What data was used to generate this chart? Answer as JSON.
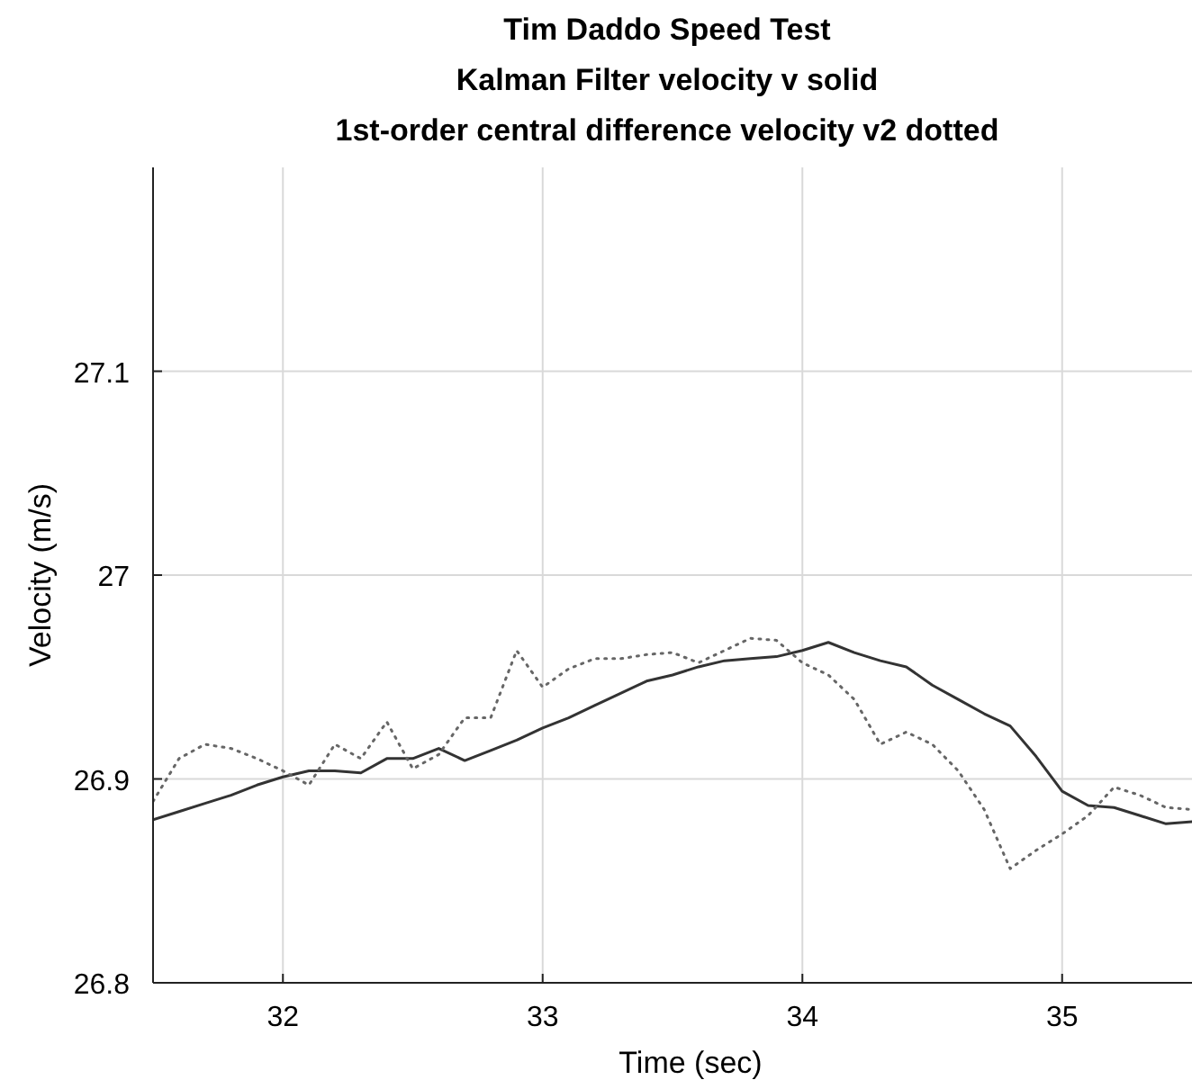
{
  "chart_data": {
    "type": "line",
    "title": "Tim Daddo Speed Test",
    "subtitle": "Kalman Filter velocity v solid\n1st-order central difference velocity v2 dotted",
    "xlabel": "Time (sec)",
    "ylabel": "Velocity (m/s)",
    "x": [
      31.5,
      31.6,
      31.7,
      31.8,
      31.9,
      32.0,
      32.1,
      32.2,
      32.3,
      32.4,
      32.5,
      32.6,
      32.7,
      32.8,
      32.9,
      33.0,
      33.1,
      33.2,
      33.3,
      33.4,
      33.5,
      33.6,
      33.7,
      33.8,
      33.9,
      34.0,
      34.1,
      34.2,
      34.3,
      34.4,
      34.5,
      34.6,
      34.7,
      34.8,
      34.9,
      35.0,
      35.1,
      35.2,
      35.3,
      35.4,
      35.5
    ],
    "series": [
      {
        "color": "#333333",
        "line_style": "solid",
        "values": [
          26.88,
          26.884,
          26.888,
          26.892,
          26.897,
          26.901,
          26.904,
          26.904,
          26.903,
          26.91,
          26.91,
          26.915,
          26.909,
          26.914,
          26.919,
          26.925,
          26.93,
          26.936,
          26.942,
          26.948,
          26.951,
          26.955,
          26.958,
          26.959,
          26.96,
          26.963,
          26.967,
          26.962,
          26.958,
          26.955,
          26.946,
          26.939,
          26.932,
          26.926,
          26.911,
          26.894,
          26.887,
          26.886,
          26.882,
          26.878,
          26.879
        ]
      },
      {
        "color": "#666666",
        "line_style": "dotted",
        "values": [
          26.889,
          26.91,
          26.917,
          26.915,
          26.91,
          26.904,
          26.897,
          26.917,
          26.91,
          26.928,
          26.905,
          26.912,
          26.93,
          26.93,
          26.963,
          26.945,
          26.954,
          26.959,
          26.959,
          26.961,
          26.962,
          26.957,
          26.963,
          26.969,
          26.968,
          26.957,
          26.951,
          26.939,
          26.917,
          26.923,
          26.917,
          26.904,
          26.885,
          26.856,
          26.865,
          26.873,
          26.882,
          26.896,
          26.892,
          26.886,
          26.885
        ]
      }
    ],
    "xlim": [
      31.5,
      35.5
    ],
    "xticks": [
      32,
      33,
      34,
      35
    ],
    "ylim": [
      26.8,
      27.2
    ],
    "yticks": [
      26.8,
      26.9,
      {
        "value": 27.0,
        "label": "27"
      },
      27.1
    ],
    "grid": true
  }
}
